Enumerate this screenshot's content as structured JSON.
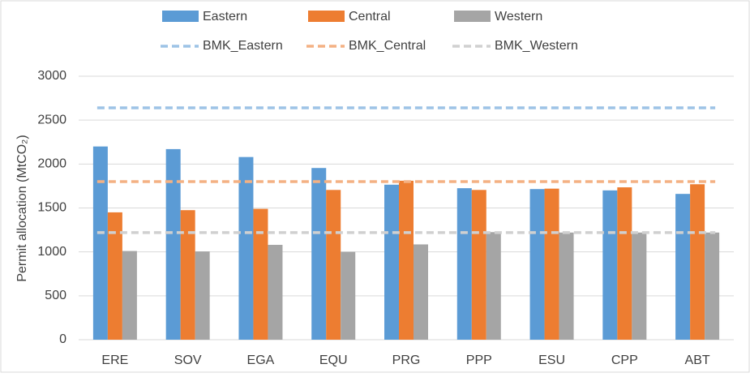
{
  "chart_data": {
    "type": "bar",
    "y_label": "Permit allocation (MtCO₂)",
    "categories": [
      "ERE",
      "SOV",
      "EGA",
      "EQU",
      "PRG",
      "PPP",
      "ESU",
      "CPP",
      "ABT"
    ],
    "series": [
      {
        "name": "Eastern",
        "color": "#5b9bd5",
        "values": [
          2200,
          2170,
          2080,
          1955,
          1765,
          1725,
          1715,
          1700,
          1660
        ]
      },
      {
        "name": "Central",
        "color": "#ed7d31",
        "values": [
          1450,
          1475,
          1490,
          1705,
          1810,
          1705,
          1720,
          1735,
          1770
        ]
      },
      {
        "name": "Western",
        "color": "#a5a5a5",
        "values": [
          1010,
          1005,
          1080,
          1000,
          1085,
          1225,
          1220,
          1220,
          1220
        ]
      }
    ],
    "benchmarks": [
      {
        "name": "BMK_Eastern",
        "color": "#9dc3e6",
        "value": 2640
      },
      {
        "name": "BMK_Central",
        "color": "#f4b183",
        "value": 1800
      },
      {
        "name": "BMK_Western",
        "color": "#d0d0d0",
        "value": 1220
      }
    ],
    "ylim": [
      0,
      3000
    ],
    "yticks": [
      0,
      500,
      1000,
      1500,
      2000,
      2500,
      3000
    ],
    "grid": true
  }
}
